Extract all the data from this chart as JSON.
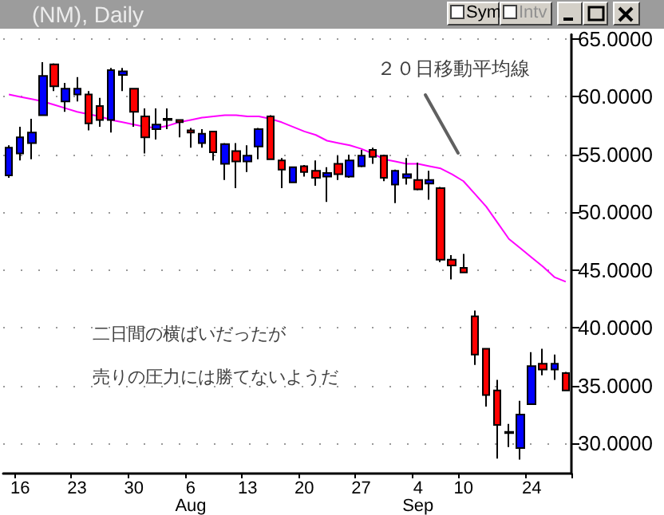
{
  "chart_data": {
    "type": "candlestick",
    "title": "(NM), Daily",
    "categories": [
      null,
      "16",
      null,
      null,
      null,
      null,
      "23",
      null,
      null,
      null,
      null,
      "30",
      null,
      null,
      null,
      null,
      "6\nAug",
      null,
      null,
      null,
      null,
      "13",
      null,
      null,
      null,
      null,
      "20",
      null,
      null,
      null,
      null,
      "27",
      null,
      null,
      null,
      null,
      "4\nSep",
      null,
      null,
      null,
      "10",
      null,
      null,
      null,
      null,
      null,
      "24",
      null,
      null,
      null
    ],
    "series": [
      {
        "type": "line",
        "color": "#ff00ff",
        "marker": "none",
        "values": [
          60.2,
          60.0,
          59.8,
          59.6,
          59.3,
          59.0,
          58.7,
          58.5,
          58.3,
          58.0,
          57.8,
          57.6,
          57.4,
          57.3,
          57.5,
          57.8,
          58.0,
          58.2,
          58.3,
          58.4,
          58.4,
          58.3,
          58.3,
          58.1,
          57.8,
          57.4,
          57.0,
          56.7,
          56.2,
          56.0,
          55.8,
          55.5,
          55.1,
          54.6,
          54.4,
          54.2,
          54.2,
          54.0,
          53.8,
          53.3,
          52.7,
          51.6,
          50.5,
          49.1,
          47.7,
          46.9,
          46.1,
          45.3,
          44.4,
          44.0
        ]
      },
      {
        "ohlc": [
          [
            53.2,
            55.8,
            53.0,
            55.6
          ],
          [
            55.1,
            57.4,
            54.5,
            56.5
          ],
          [
            56.0,
            58.1,
            54.6,
            56.9
          ],
          [
            58.4,
            63.0,
            58.4,
            61.8
          ],
          [
            62.8,
            62.9,
            60.5,
            60.9
          ],
          [
            59.6,
            61.2,
            58.7,
            60.7
          ],
          [
            60.2,
            61.7,
            59.6,
            60.7
          ],
          [
            60.2,
            60.5,
            57.1,
            57.7
          ],
          [
            59.2,
            59.9,
            57.4,
            58.0
          ],
          [
            58.0,
            62.5,
            56.9,
            62.3
          ],
          [
            61.9,
            62.5,
            60.5,
            62.2
          ],
          [
            60.7,
            60.7,
            57.4,
            58.7
          ],
          [
            58.3,
            59.0,
            55.1,
            56.5
          ],
          [
            57.2,
            59.0,
            56.3,
            57.6
          ],
          [
            58.0,
            59.0,
            57.2,
            58.1
          ],
          [
            58.0,
            58.0,
            56.5,
            57.8
          ],
          [
            57.1,
            57.3,
            55.6,
            56.9
          ],
          [
            56.0,
            57.2,
            55.6,
            56.8
          ],
          [
            57.0,
            57.0,
            54.5,
            55.2
          ],
          [
            54.2,
            56.0,
            52.8,
            55.9
          ],
          [
            55.3,
            56.0,
            52.1,
            54.4
          ],
          [
            54.4,
            55.8,
            53.5,
            54.9
          ],
          [
            55.7,
            57.3,
            54.6,
            57.2
          ],
          [
            58.3,
            58.4,
            54.6,
            54.6
          ],
          [
            54.5,
            54.7,
            52.1,
            53.7
          ],
          [
            52.6,
            53.9,
            52.6,
            53.9
          ],
          [
            54.0,
            54.1,
            53.1,
            53.5
          ],
          [
            53.6,
            54.5,
            52.3,
            53.0
          ],
          [
            53.1,
            53.9,
            50.9,
            53.4
          ],
          [
            54.2,
            54.9,
            52.8,
            53.3
          ],
          [
            53.1,
            55.0,
            53.0,
            54.5
          ],
          [
            54.0,
            55.4,
            53.9,
            54.9
          ],
          [
            55.4,
            55.6,
            54.2,
            54.8
          ],
          [
            54.9,
            55.0,
            52.7,
            53.0
          ],
          [
            52.4,
            53.7,
            50.8,
            53.6
          ],
          [
            53.0,
            54.7,
            52.4,
            53.3
          ],
          [
            52.8,
            54.3,
            51.9,
            52.0
          ],
          [
            52.5,
            53.6,
            51.1,
            52.8
          ],
          [
            52.1,
            52.2,
            45.7,
            45.9
          ],
          [
            45.9,
            46.3,
            44.2,
            45.4
          ],
          [
            45.2,
            46.4,
            44.8,
            44.8
          ],
          [
            41.0,
            41.5,
            36.8,
            37.7
          ],
          [
            38.2,
            38.2,
            33.2,
            34.2
          ],
          [
            34.6,
            35.5,
            28.7,
            31.6
          ],
          [
            30.9,
            31.7,
            29.7,
            31.0
          ],
          [
            29.6,
            33.7,
            28.6,
            32.5
          ],
          [
            33.4,
            37.9,
            33.4,
            36.7
          ],
          [
            36.9,
            38.2,
            35.9,
            36.4
          ],
          [
            36.4,
            37.7,
            35.5,
            36.9
          ],
          [
            36.1,
            36.2,
            34.6,
            34.6
          ]
        ],
        "colors": [
          "#0000ff",
          "#0000ff",
          "#0000ff",
          "#0000ff",
          "#ff0000",
          "#0000ff",
          "#0000ff",
          "#ff0000",
          "#ff0000",
          "#0000ff",
          "#0000ff",
          "#ff0000",
          "#ff0000",
          "#0000ff",
          "#0000ff",
          "#ff0000",
          "#ff0000",
          "#0000ff",
          "#ff0000",
          "#0000ff",
          "#ff0000",
          "#0000ff",
          "#0000ff",
          "#ff0000",
          "#ff0000",
          "#0000ff",
          "#ff0000",
          "#ff0000",
          "#0000ff",
          "#ff0000",
          "#0000ff",
          "#0000ff",
          "#ff0000",
          "#ff0000",
          "#0000ff",
          "#0000ff",
          "#ff0000",
          "#0000ff",
          "#ff0000",
          "#ff0000",
          "#ff0000",
          "#ff0000",
          "#ff0000",
          "#ff0000",
          "#0000ff",
          "#0000ff",
          "#0000ff",
          "#ff0000",
          "#0000ff",
          "#ff0000"
        ]
      }
    ],
    "ylim": [
      27.4,
      65.4
    ],
    "yticks": [
      {
        "value": 30,
        "label": "30.0000"
      },
      {
        "value": 35,
        "label": "35.0000"
      },
      {
        "value": 40,
        "label": "40.0000"
      },
      {
        "value": 45,
        "label": "45.0000"
      },
      {
        "value": 50,
        "label": "50.0000"
      },
      {
        "value": 55,
        "label": "55.0000"
      },
      {
        "value": 60,
        "label": "60.0000"
      },
      {
        "value": 65,
        "label": "65.0000"
      }
    ],
    "grid": "y",
    "annotations": [
      "Sym",
      "Intv",
      "２０日移動平均線",
      "二日間の横ばいだったが",
      "売りの圧力には勝てないようだ"
    ]
  }
}
